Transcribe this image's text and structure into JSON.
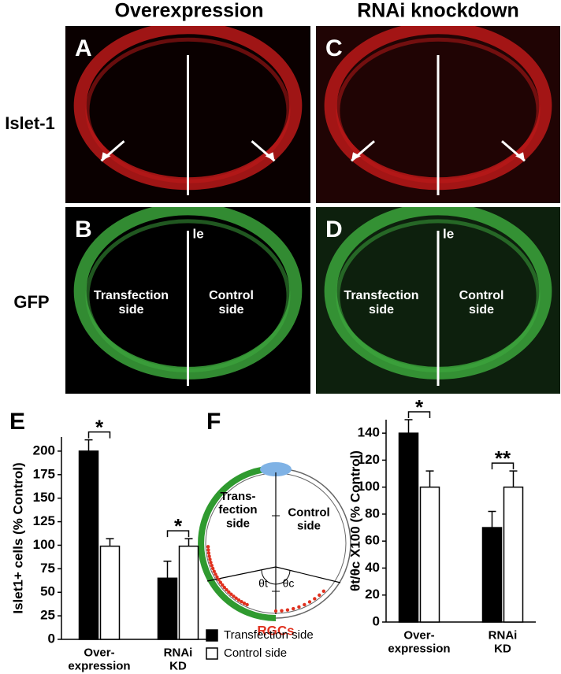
{
  "headers": [
    "Overexpression",
    "RNAi knockdown"
  ],
  "row_labels": [
    "Islet-1",
    "GFP"
  ],
  "image_panels": [
    {
      "letter": "A"
    },
    {
      "letter": "B",
      "marker": "le",
      "left_label": "Transfection\nside",
      "right_label": "Control\nside"
    },
    {
      "letter": "C"
    },
    {
      "letter": "D",
      "marker": "le",
      "left_label": "Transfection\nside",
      "right_label": "Control\nside"
    }
  ],
  "panel_letters": [
    "E",
    "F"
  ],
  "diagram": {
    "left_label": "Trans-\nfection\nside",
    "right_label": "Control\nside",
    "theta_t": "θt",
    "theta_c": "θc",
    "cells": "RGCs"
  },
  "chart_data": [
    {
      "type": "bar",
      "y_label": "Islet1+ cells (% Control)",
      "categories": [
        "Over-\nexpression",
        "RNAi\nKD"
      ],
      "series": [
        {
          "color": "#000000",
          "values": [
            200,
            65
          ],
          "errors": [
            12,
            18
          ]
        },
        {
          "color": "#ffffff",
          "values": [
            99,
            99
          ],
          "errors": [
            8,
            8
          ]
        }
      ],
      "significance": [
        "*",
        "*"
      ],
      "ylim": [
        0,
        215
      ],
      "yticks": [
        0,
        25,
        50,
        75,
        100,
        125,
        150,
        175,
        200
      ]
    },
    {
      "type": "bar",
      "y_label": "θt/θc X100 (% Control)",
      "categories": [
        "Over-\nexpression",
        "RNAi\nKD"
      ],
      "series": [
        {
          "name": "Transfection side",
          "color": "#000000",
          "values": [
            140,
            70
          ],
          "errors": [
            10,
            12
          ]
        },
        {
          "name": "Control side",
          "color": "#ffffff",
          "values": [
            100,
            100
          ],
          "errors": [
            12,
            12
          ]
        }
      ],
      "significance": [
        "*",
        "**"
      ],
      "ylim": [
        0,
        150
      ],
      "yticks": [
        0,
        20,
        40,
        60,
        80,
        100,
        120,
        140
      ]
    }
  ]
}
